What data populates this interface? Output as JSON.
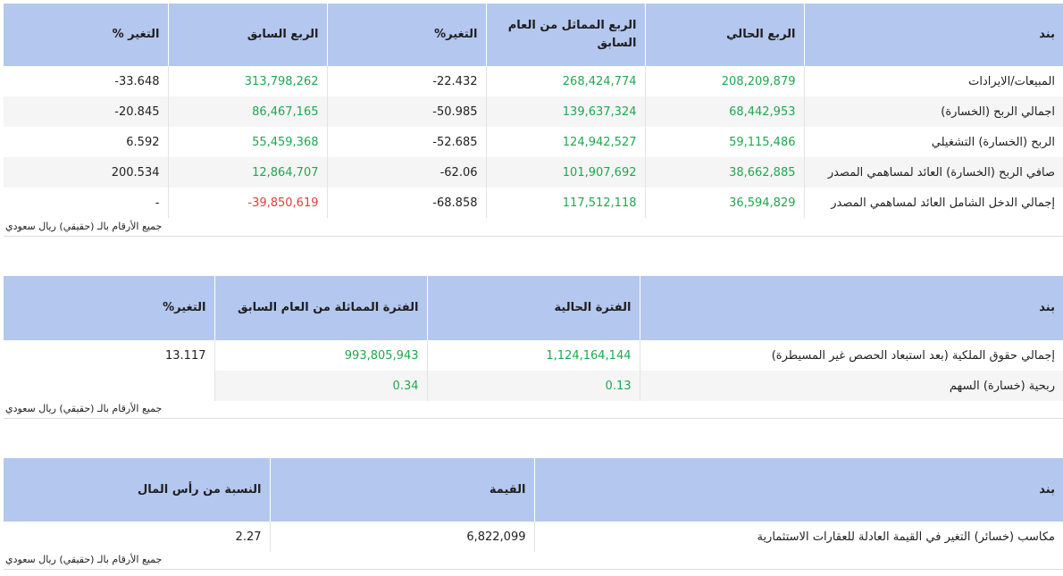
{
  "table1": {
    "headers": [
      "بند",
      "الربع الحالي",
      "الربع المماثل من العام السابق",
      "التغير%",
      "الربع السابق",
      "التغير %"
    ],
    "rows": [
      [
        "المبيعات/الايرادات",
        "208,209,879",
        "268,424,774",
        "22.432-",
        "313,798,262",
        "33.648-"
      ],
      [
        "اجمالي الربح (الخسارة)",
        "68,442,953",
        "139,637,324",
        "50.985-",
        "86,467,165",
        "20.845-"
      ],
      [
        "الربح (الخسارة) التشغيلي",
        "59,115,486",
        "124,942,527",
        "52.685-",
        "55,459,368",
        "6.592"
      ],
      [
        "صافي الربح (الخسارة) العائد لمساهمي المصدر",
        "38,662,885",
        "101,907,692",
        "62.06-",
        "12,864,707",
        "200.534"
      ],
      [
        "إجمالي الدخل الشامل العائد لمساهمي المصدر",
        "36,594,829",
        "117,512,118",
        "68.858-",
        "39,850,619-",
        "-"
      ]
    ],
    "note": "جميع الأرقام بالـ (حقيقي) ريال سعودي"
  },
  "table2": {
    "headers": [
      "بند",
      "الفترة الحالية",
      "الفترة المماثلة من العام السابق",
      "التغير%"
    ],
    "rows": [
      [
        "إجمالي حقوق الملكية (بعد استبعاد الحصص غير المسيطرة)",
        "1,124,164,144",
        "993,805,943",
        "13.117"
      ],
      [
        "ربحية (خسارة) السهم",
        "0.13",
        "0.34",
        ""
      ]
    ],
    "note": "جميع الأرقام بالـ (حقيقي) ريال سعودي"
  },
  "table3": {
    "headers": [
      "بند",
      "القيمة",
      "النسبة من رأس المال"
    ],
    "rows": [
      [
        "مكاسب (خسائر) التغير في القيمة العادلة للعقارات الاستثمارية",
        "6,822,099",
        "2.27"
      ]
    ],
    "note": "جميع الأرقام بالـ (حقيقي) ريال سعودي"
  },
  "colors": {
    "header_bg": "#b4c7ee",
    "positive": "#1fa84f",
    "negative": "#e43d3d",
    "row_alt": "#f5f5f5"
  }
}
